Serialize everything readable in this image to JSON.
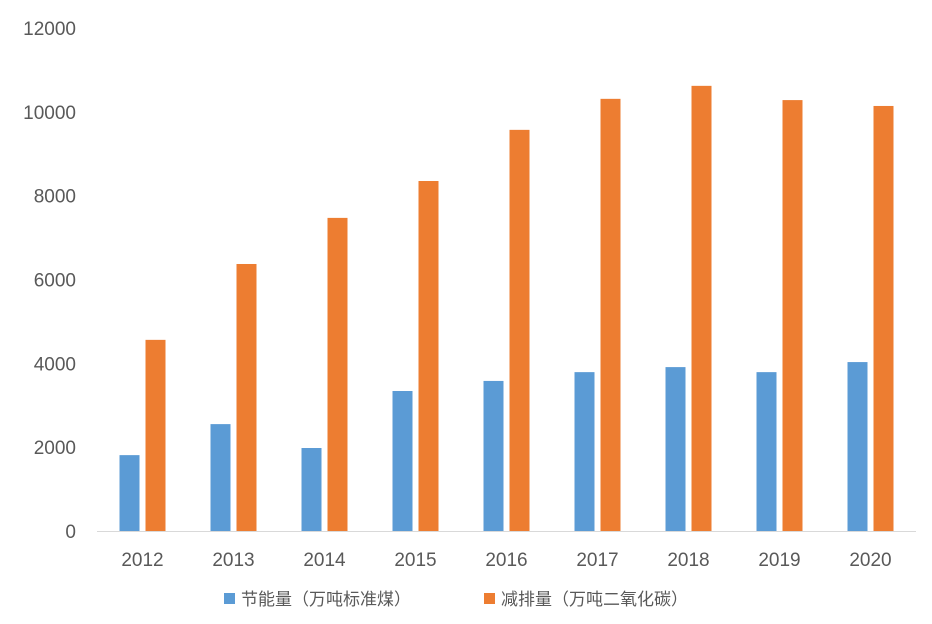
{
  "chart_data": {
    "type": "bar",
    "title": "",
    "xlabel": "",
    "ylabel": "",
    "ylim": [
      0,
      12000
    ],
    "yticks": [
      0,
      2000,
      4000,
      6000,
      8000,
      10000,
      12000
    ],
    "grid": false,
    "legend_position": "bottom",
    "categories": [
      "2012",
      "2013",
      "2014",
      "2015",
      "2016",
      "2017",
      "2018",
      "2019",
      "2020"
    ],
    "series": [
      {
        "name": "节能量（万吨标准煤）",
        "color": "#5B9BD5",
        "values": [
          1810,
          2550,
          1980,
          3340,
          3580,
          3790,
          3910,
          3790,
          4030
        ]
      },
      {
        "name": "减排量（万吨二氧化碳）",
        "color": "#ED7D31",
        "values": [
          4560,
          6370,
          7470,
          8350,
          9570,
          10310,
          10620,
          10280,
          10140
        ]
      }
    ]
  }
}
